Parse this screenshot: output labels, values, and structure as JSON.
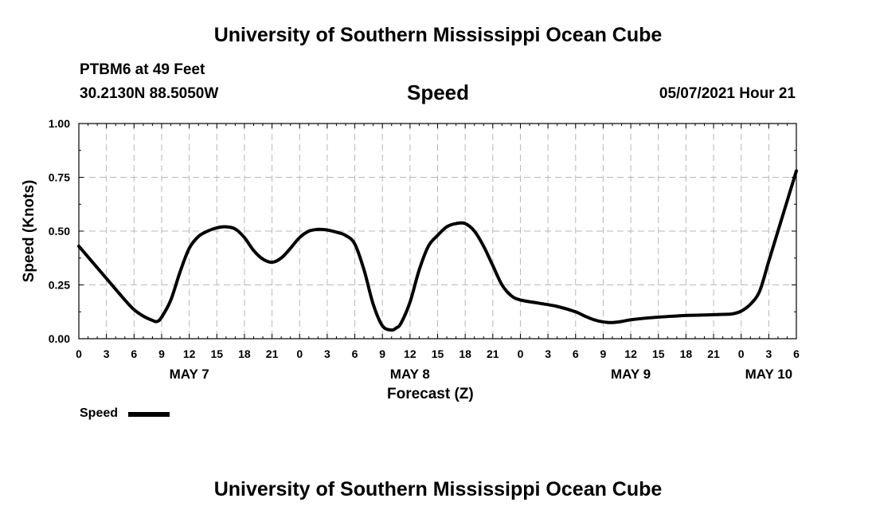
{
  "header": {
    "title": "University of Southern Mississippi Ocean Cube",
    "station": "PTBM6 at 49 Feet",
    "location": "30.2130N  88.5050W",
    "variable": "Speed",
    "datetime": "05/07/2021 Hour 21"
  },
  "footer": {
    "title": "University of Southern Mississippi Ocean Cube"
  },
  "legend": {
    "label": "Speed",
    "color": "#000000"
  },
  "chart_data": {
    "type": "line",
    "title": "Speed",
    "xlabel": "Forecast (Z)",
    "ylabel": "Speed (Knots)",
    "x_unit": "hours from May 7 00Z",
    "xlim": [
      0,
      78
    ],
    "ylim": [
      0,
      1
    ],
    "grid": true,
    "x_tick_step": 3,
    "x_tick_labels": [
      "0",
      "3",
      "6",
      "9",
      "12",
      "15",
      "18",
      "21",
      "0",
      "3",
      "6",
      "9",
      "12",
      "15",
      "18",
      "21",
      "0",
      "3",
      "6",
      "9",
      "12",
      "15",
      "18",
      "21",
      "0",
      "3",
      "6"
    ],
    "y_ticks": [
      0,
      0.25,
      0.5,
      0.75,
      1.0
    ],
    "y_tick_labels": [
      "0.00",
      "0.25",
      "0.50",
      "0.75",
      "1.00"
    ],
    "day_labels": [
      {
        "label": "MAY 7",
        "hour": 12
      },
      {
        "label": "MAY 8",
        "hour": 36
      },
      {
        "label": "MAY 9",
        "hour": 60
      },
      {
        "label": "MAY 10",
        "hour": 75
      }
    ],
    "series": [
      {
        "name": "Speed",
        "color": "#000000",
        "x": [
          0,
          1,
          3,
          5,
          6,
          7,
          8,
          8.5,
          9,
          10,
          11,
          12,
          13,
          14,
          15,
          16,
          17,
          18,
          19,
          20,
          21,
          22,
          23,
          24,
          25,
          26,
          27,
          28,
          29,
          30,
          31,
          32,
          33,
          34,
          34.5,
          35,
          36,
          37,
          38,
          39,
          40,
          41,
          42,
          43,
          44,
          45,
          46,
          47,
          48,
          50,
          52,
          54,
          55,
          56,
          57,
          58,
          59,
          60,
          62,
          64,
          66,
          68,
          70,
          71,
          72,
          73,
          74,
          75,
          76,
          77,
          78
        ],
        "y": [
          0.43,
          0.38,
          0.28,
          0.18,
          0.135,
          0.105,
          0.085,
          0.08,
          0.1,
          0.18,
          0.31,
          0.42,
          0.475,
          0.5,
          0.515,
          0.52,
          0.51,
          0.47,
          0.41,
          0.37,
          0.355,
          0.375,
          0.42,
          0.47,
          0.5,
          0.508,
          0.505,
          0.495,
          0.48,
          0.44,
          0.32,
          0.16,
          0.06,
          0.04,
          0.05,
          0.07,
          0.17,
          0.32,
          0.43,
          0.48,
          0.52,
          0.535,
          0.535,
          0.5,
          0.43,
          0.34,
          0.25,
          0.2,
          0.18,
          0.165,
          0.15,
          0.125,
          0.105,
          0.088,
          0.078,
          0.075,
          0.08,
          0.088,
          0.097,
          0.103,
          0.108,
          0.11,
          0.113,
          0.115,
          0.128,
          0.16,
          0.22,
          0.36,
          0.5,
          0.64,
          0.78
        ]
      }
    ]
  }
}
